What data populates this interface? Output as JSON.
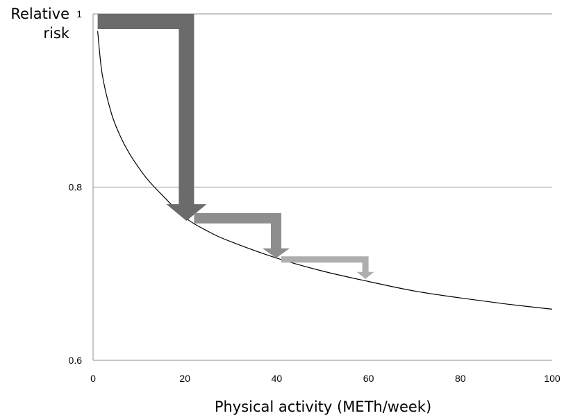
{
  "chart_data": {
    "type": "line",
    "xlabel": "Physical activity (METh/week)",
    "ylabel": "Relative risk",
    "xlim": [
      0,
      100
    ],
    "ylim": [
      0.6,
      1
    ],
    "x_ticks": [
      "0",
      "20",
      "40",
      "60",
      "80",
      "100"
    ],
    "y_ticks": [
      "0.6",
      "0.8",
      "1"
    ],
    "grid": "horizontal",
    "series": [
      {
        "x": [
          1,
          2,
          4,
          6,
          8,
          10,
          12,
          15,
          20,
          25,
          30,
          40,
          50,
          60,
          70,
          80,
          90,
          100
        ],
        "values": [
          0.98,
          0.93,
          0.885,
          0.858,
          0.838,
          0.822,
          0.808,
          0.791,
          0.765,
          0.749,
          0.737,
          0.718,
          0.703,
          0.691,
          0.68,
          0.672,
          0.665,
          0.659
        ]
      }
    ],
    "annotations": [
      {
        "type": "step-arrow",
        "from_x": 1,
        "to_x": 22,
        "top_y": 1.0,
        "end_y": 0.761,
        "color": "#6b6b6b"
      },
      {
        "type": "step-arrow",
        "from_x": 22,
        "to_x": 41,
        "top_y": 0.77,
        "end_y": 0.718,
        "color": "#8e8e8e"
      },
      {
        "type": "step-arrow",
        "from_x": 41,
        "to_x": 60,
        "top_y": 0.72,
        "end_y": 0.694,
        "color": "#aeaeae"
      }
    ]
  }
}
